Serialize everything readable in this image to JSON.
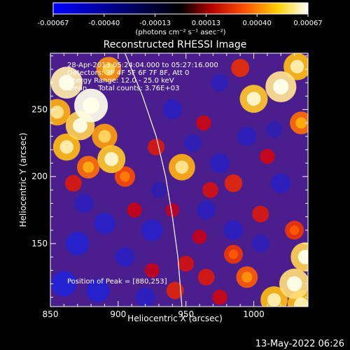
{
  "colorbar": {
    "ticks": [
      "-0.00067",
      "-0.00040",
      "-0.00013",
      "0.00013",
      "0.00040",
      "0.00067"
    ],
    "units_label": "(photons cm⁻² s⁻¹ asec⁻²)",
    "colormap": "blue-black-red-yellow-white",
    "colors": [
      "#0000ff",
      "#000000",
      "#c80000",
      "#ff8000",
      "#ffe000",
      "#ffffff"
    ]
  },
  "plot": {
    "title": "Reconstructed RHESSI Image",
    "info_lines": [
      "28-Apr-2013 05:24:04.000 to 05:27:16.000",
      "Detectors: 3F 4F 5F 6F 7F 8F, Att 0",
      "Energy Range: 12.0 - 25.0 keV",
      "Clean     Total counts: 3.76E+03"
    ],
    "peak_label": "Position of Peak = [880,253]"
  },
  "chart_data": {
    "type": "heatmap",
    "title": "Reconstructed RHESSI Image",
    "xlabel": "Heliocentric X (arcsec)",
    "ylabel": "Heliocentric Y (arcsec)",
    "xlim": [
      850,
      1040
    ],
    "ylim": [
      103,
      292
    ],
    "x_ticks": [
      850,
      900,
      950,
      1000
    ],
    "y_ticks": [
      150,
      200,
      250
    ],
    "x_tick_labels": [
      "850",
      "900",
      "950",
      "1000"
    ],
    "y_tick_labels": [
      "150",
      "200",
      "250"
    ],
    "value_range": [
      -0.00067,
      0.00067
    ],
    "peak": [
      880,
      253
    ],
    "limb_curve": [
      [
        905,
        292
      ],
      [
        918,
        260
      ],
      [
        928,
        230
      ],
      [
        935,
        200
      ],
      [
        940,
        170
      ],
      [
        944,
        140
      ],
      [
        947,
        103
      ]
    ],
    "blobs": [
      {
        "x": 862,
        "y": 270,
        "v": 0.00062
      },
      {
        "x": 880,
        "y": 253,
        "v": 0.00067
      },
      {
        "x": 872,
        "y": 238,
        "v": 0.00055
      },
      {
        "x": 862,
        "y": 222,
        "v": 0.0005
      },
      {
        "x": 890,
        "y": 230,
        "v": 0.00045
      },
      {
        "x": 895,
        "y": 213,
        "v": 0.00052
      },
      {
        "x": 878,
        "y": 207,
        "v": 0.00038
      },
      {
        "x": 905,
        "y": 200,
        "v": 0.00032
      },
      {
        "x": 855,
        "y": 248,
        "v": 0.00048
      },
      {
        "x": 893,
        "y": 280,
        "v": 0.00044
      },
      {
        "x": 867,
        "y": 195,
        "v": 0.00022
      },
      {
        "x": 1020,
        "y": 267,
        "v": 0.0006
      },
      {
        "x": 1000,
        "y": 258,
        "v": 0.00052
      },
      {
        "x": 1032,
        "y": 282,
        "v": 0.0005
      },
      {
        "x": 1035,
        "y": 240,
        "v": 0.00038
      },
      {
        "x": 990,
        "y": 281,
        "v": 0.00026
      },
      {
        "x": 947,
        "y": 207,
        "v": 0.00048
      },
      {
        "x": 928,
        "y": 222,
        "v": 0.00022
      },
      {
        "x": 963,
        "y": 240,
        "v": 0.00018
      },
      {
        "x": 968,
        "y": 190,
        "v": 0.0002
      },
      {
        "x": 985,
        "y": 195,
        "v": 0.00025
      },
      {
        "x": 1010,
        "y": 215,
        "v": 0.00018
      },
      {
        "x": 940,
        "y": 175,
        "v": 0.00015
      },
      {
        "x": 912,
        "y": 175,
        "v": 0.00017
      },
      {
        "x": 1005,
        "y": 172,
        "v": 0.00022
      },
      {
        "x": 1030,
        "y": 160,
        "v": 0.00028
      },
      {
        "x": 1038,
        "y": 140,
        "v": 0.00055
      },
      {
        "x": 1030,
        "y": 120,
        "v": 0.00058
      },
      {
        "x": 1015,
        "y": 108,
        "v": 0.0005
      },
      {
        "x": 1035,
        "y": 105,
        "v": 0.0005
      },
      {
        "x": 995,
        "y": 125,
        "v": 0.00035
      },
      {
        "x": 985,
        "y": 142,
        "v": 0.00028
      },
      {
        "x": 965,
        "y": 125,
        "v": 0.00022
      },
      {
        "x": 950,
        "y": 135,
        "v": 0.0002
      },
      {
        "x": 942,
        "y": 115,
        "v": 0.00024
      },
      {
        "x": 925,
        "y": 130,
        "v": 0.00016
      },
      {
        "x": 960,
        "y": 155,
        "v": 0.00016
      },
      {
        "x": 975,
        "y": 110,
        "v": 0.00018
      },
      {
        "x": 870,
        "y": 150,
        "v": -0.0004
      },
      {
        "x": 890,
        "y": 165,
        "v": -0.00035
      },
      {
        "x": 860,
        "y": 120,
        "v": -0.00045
      },
      {
        "x": 885,
        "y": 115,
        "v": -0.0004
      },
      {
        "x": 905,
        "y": 140,
        "v": -0.0003
      },
      {
        "x": 925,
        "y": 160,
        "v": -0.00035
      },
      {
        "x": 920,
        "y": 110,
        "v": -0.0003
      },
      {
        "x": 875,
        "y": 180,
        "v": -0.00028
      },
      {
        "x": 955,
        "y": 225,
        "v": -0.00025
      },
      {
        "x": 975,
        "y": 210,
        "v": -0.0003
      },
      {
        "x": 995,
        "y": 230,
        "v": -0.00028
      },
      {
        "x": 1020,
        "y": 195,
        "v": -0.0003
      },
      {
        "x": 965,
        "y": 175,
        "v": -0.00028
      },
      {
        "x": 985,
        "y": 160,
        "v": -0.0003
      },
      {
        "x": 1005,
        "y": 150,
        "v": -0.00025
      },
      {
        "x": 940,
        "y": 250,
        "v": -0.0003
      },
      {
        "x": 975,
        "y": 270,
        "v": -0.00025
      },
      {
        "x": 930,
        "y": 190,
        "v": -0.0002
      },
      {
        "x": 1015,
        "y": 235,
        "v": -0.00022
      }
    ]
  },
  "footer": {
    "timestamp": "13-May-2022 06:26"
  }
}
